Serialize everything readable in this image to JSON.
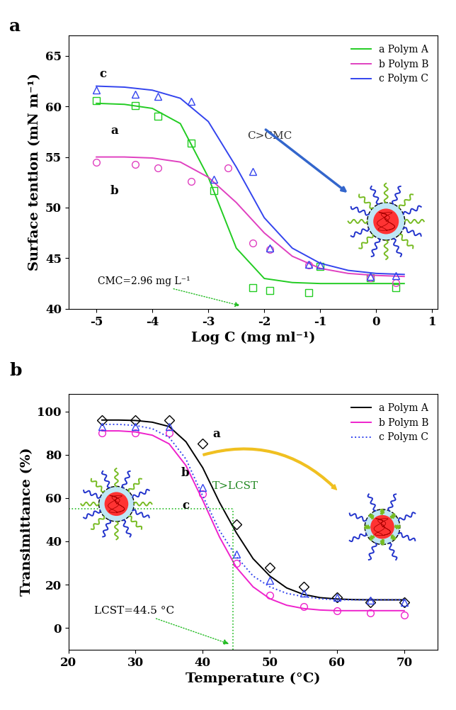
{
  "chart_data": [
    {
      "type": "line",
      "title": "a",
      "x_label": "Log C (mg ml⁻¹)",
      "y_label": "Surface tention (mN m⁻¹)",
      "xlim": [
        -5.5,
        1.1
      ],
      "ylim": [
        40,
        67
      ],
      "xticks": [
        -5,
        -4,
        -3,
        -2,
        -1,
        0,
        1
      ],
      "yticks": [
        40,
        45,
        50,
        55,
        60,
        65
      ],
      "legend": "upper right",
      "annotations": [
        "C>CMC",
        "CMC=2.96 mg L⁻¹"
      ],
      "series": [
        {
          "name": "a Polym A",
          "curve_label": "a",
          "color": "#22cc22",
          "marker": "square",
          "line_style": "solid",
          "x": [
            -5,
            -4.3,
            -3.9,
            -3.3,
            -2.9,
            -2.2,
            -1.9,
            -1.2,
            -1,
            -0.1,
            0.35
          ],
          "values": [
            60.6,
            60.1,
            59.0,
            56.4,
            51.7,
            42.1,
            41.8,
            41.6,
            44.2,
            43.1,
            42.1
          ],
          "fit_x": [
            -5,
            -4.5,
            -4,
            -3.5,
            -3,
            -2.5,
            -2,
            -1.5,
            -1,
            -0.5,
            0,
            0.5
          ],
          "fit": [
            60.3,
            60.2,
            59.8,
            58.3,
            53.0,
            46.0,
            43.0,
            42.6,
            42.5,
            42.5,
            42.5,
            42.5
          ]
        },
        {
          "name": "b Polym B",
          "curve_label": "b",
          "color": "#e040c0",
          "marker": "circle",
          "line_style": "solid",
          "x": [
            -5,
            -4.3,
            -3.9,
            -3.3,
            -2.65,
            -2.2,
            -1.9,
            -1.2,
            -0.1,
            0.35
          ],
          "values": [
            54.5,
            54.3,
            53.9,
            52.6,
            53.9,
            46.5,
            45.9,
            44.3,
            43.1,
            42.6
          ],
          "fit_x": [
            -5,
            -4.5,
            -4,
            -3.5,
            -3,
            -2.5,
            -2,
            -1.5,
            -1,
            -0.5,
            0,
            0.5
          ],
          "fit": [
            55.0,
            55.0,
            54.9,
            54.5,
            53.0,
            50.5,
            47.5,
            45.2,
            44.0,
            43.5,
            43.3,
            43.2
          ]
        },
        {
          "name": "c Polym C",
          "curve_label": "c",
          "color": "#3344ee",
          "marker": "triangle",
          "line_style": "solid",
          "x": [
            -5,
            -4.3,
            -3.9,
            -3.3,
            -2.9,
            -2.2,
            -1.9,
            -1.2,
            -1,
            -0.1,
            0.35
          ],
          "values": [
            61.6,
            61.2,
            61.0,
            60.5,
            52.8,
            53.6,
            46.0,
            44.4,
            44.3,
            43.2,
            43.3
          ],
          "fit_x": [
            -5,
            -4.5,
            -4,
            -3.5,
            -3,
            -2.5,
            -2,
            -1.5,
            -1,
            -0.5,
            0,
            0.5
          ],
          "fit": [
            62.0,
            61.9,
            61.6,
            60.8,
            58.5,
            54.0,
            49.0,
            46.0,
            44.5,
            43.8,
            43.5,
            43.4
          ]
        }
      ]
    },
    {
      "type": "line",
      "title": "b",
      "x_label": "Temperature (°C)",
      "y_label": "Transimittance (%)",
      "xlim": [
        20,
        75
      ],
      "ylim": [
        -10,
        108
      ],
      "xticks": [
        20,
        30,
        40,
        50,
        60,
        70
      ],
      "yticks": [
        0,
        20,
        40,
        60,
        80,
        100
      ],
      "legend": "upper right",
      "annotations": [
        "T>LCST",
        "LCST=44.5 °C"
      ],
      "guide": {
        "x": 44.5,
        "y": 55
      },
      "series": [
        {
          "name": "a Polym A",
          "curve_label": "a",
          "color": "#000000",
          "marker": "diamond",
          "line_style": "solid",
          "x": [
            25,
            30,
            35,
            40,
            45,
            50,
            55,
            60,
            65,
            70
          ],
          "values": [
            96,
            96,
            96,
            85,
            48,
            28,
            19,
            14,
            12,
            12
          ],
          "fit_x": [
            25,
            27.5,
            30,
            32.5,
            35,
            37.5,
            40,
            42.5,
            45,
            47.5,
            50,
            52.5,
            55,
            57.5,
            60,
            62.5,
            65,
            67.5,
            70
          ],
          "fit": [
            96,
            96,
            95.8,
            95,
            93,
            86,
            74,
            58,
            44,
            32,
            24,
            18.5,
            15.5,
            14,
            13.4,
            13.1,
            13,
            13,
            13
          ]
        },
        {
          "name": "b Polym B",
          "curve_label": "b",
          "color": "#ee22cc",
          "marker": "circle",
          "line_style": "solid",
          "x": [
            25,
            30,
            35,
            40,
            45,
            50,
            55,
            60,
            65,
            70
          ],
          "values": [
            90,
            90,
            90,
            62,
            30,
            15,
            10,
            8,
            7,
            6
          ],
          "fit_x": [
            25,
            27.5,
            30,
            32.5,
            35,
            37.5,
            40,
            42.5,
            45,
            47.5,
            50,
            52.5,
            55,
            57.5,
            60,
            62.5,
            65,
            67.5,
            70
          ],
          "fit": [
            91,
            91,
            90.5,
            89,
            85,
            75,
            59,
            42,
            28,
            19,
            13.5,
            10.5,
            9,
            8.3,
            8,
            8,
            8,
            8,
            8
          ]
        },
        {
          "name": "c Polym C",
          "curve_label": "c",
          "color": "#3344ee",
          "marker": "triangle",
          "line_style": "dotted",
          "x": [
            25,
            30,
            35,
            40,
            45,
            50,
            55,
            60,
            65,
            70
          ],
          "values": [
            93,
            93,
            93,
            65,
            34,
            22,
            16,
            14,
            13,
            12
          ],
          "fit_x": [
            25,
            27.5,
            30,
            32.5,
            35,
            37.5,
            40,
            42.5,
            45,
            47.5,
            50,
            52.5,
            55,
            57.5,
            60,
            62.5,
            65,
            67.5,
            70
          ],
          "fit": [
            94,
            94,
            93.5,
            92,
            88,
            78,
            61,
            45,
            33,
            24,
            19,
            16,
            14.5,
            13.5,
            13,
            13,
            13,
            13,
            13
          ]
        }
      ]
    }
  ]
}
